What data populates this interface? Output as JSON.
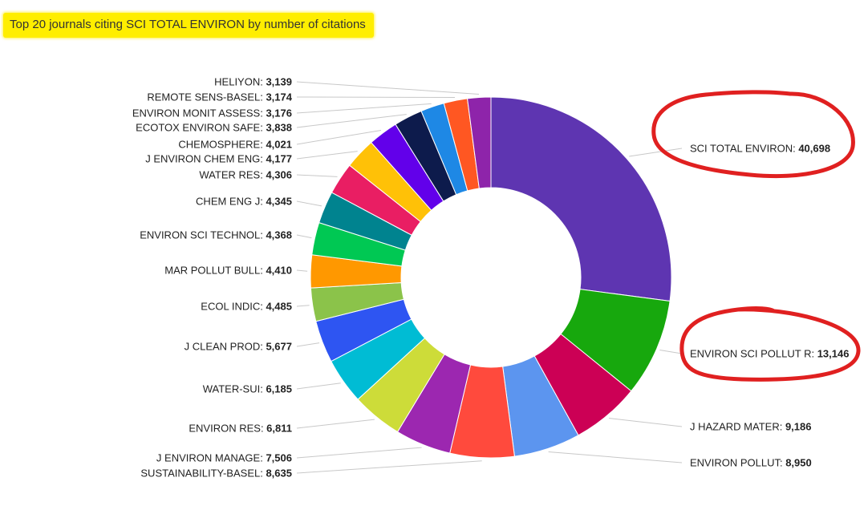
{
  "chart_data": {
    "type": "pie",
    "title": "Top 20 journals citing SCI TOTAL ENVIRON by number of citations",
    "slices": [
      {
        "label": "SCI TOTAL ENVIRON",
        "value": 40698,
        "display": "40,698",
        "color": "#5e35b1"
      },
      {
        "label": "ENVIRON SCI POLLUT R",
        "value": 13146,
        "display": "13,146",
        "color": "#17a80d"
      },
      {
        "label": "J HAZARD MATER",
        "value": 9186,
        "display": "9,186",
        "color": "#cc0055"
      },
      {
        "label": "ENVIRON POLLUT",
        "value": 8950,
        "display": "8,950",
        "color": "#5c95ef"
      },
      {
        "label": "SUSTAINABILITY-BASEL",
        "value": 8635,
        "display": "8,635",
        "color": "#ff4a3d"
      },
      {
        "label": "J ENVIRON MANAGE",
        "value": 7506,
        "display": "7,506",
        "color": "#9c27b0"
      },
      {
        "label": "ENVIRON RES",
        "value": 6811,
        "display": "6,811",
        "color": "#cddc39"
      },
      {
        "label": "WATER-SUI",
        "value": 6185,
        "display": "6,185",
        "color": "#00bcd4"
      },
      {
        "label": "J CLEAN PROD",
        "value": 5677,
        "display": "5,677",
        "color": "#2e55f2"
      },
      {
        "label": "ECOL INDIC",
        "value": 4485,
        "display": "4,485",
        "color": "#8bc34a"
      },
      {
        "label": "MAR POLLUT BULL",
        "value": 4410,
        "display": "4,410",
        "color": "#ff9800"
      },
      {
        "label": "ENVIRON SCI TECHNOL",
        "value": 4368,
        "display": "4,368",
        "color": "#00c853"
      },
      {
        "label": "CHEM ENG J",
        "value": 4345,
        "display": "4,345",
        "color": "#00838f"
      },
      {
        "label": "WATER RES",
        "value": 4306,
        "display": "4,306",
        "color": "#e91e63"
      },
      {
        "label": "J ENVIRON CHEM ENG",
        "value": 4177,
        "display": "4,177",
        "color": "#ffc107"
      },
      {
        "label": "CHEMOSPHERE",
        "value": 4021,
        "display": "4,021",
        "color": "#6200ea"
      },
      {
        "label": "ECOTOX ENVIRON SAFE",
        "value": 3838,
        "display": "3,838",
        "color": "#0d1b4c"
      },
      {
        "label": "ENVIRON MONIT ASSESS",
        "value": 3176,
        "display": "3,176",
        "color": "#1e88e5"
      },
      {
        "label": "REMOTE SENS-BASEL",
        "value": 3174,
        "display": "3,174",
        "color": "#ff5722"
      },
      {
        "label": "HELIYON",
        "value": 3139,
        "display": "3,139",
        "color": "#8e24aa"
      }
    ],
    "start_angle_deg": 0,
    "direction": "clockwise",
    "highlighted_labels": [
      "SCI TOTAL ENVIRON",
      "ENVIRON SCI POLLUT R"
    ],
    "highlight_color": "#e02020",
    "title_highlight_color": "#ffee00"
  }
}
